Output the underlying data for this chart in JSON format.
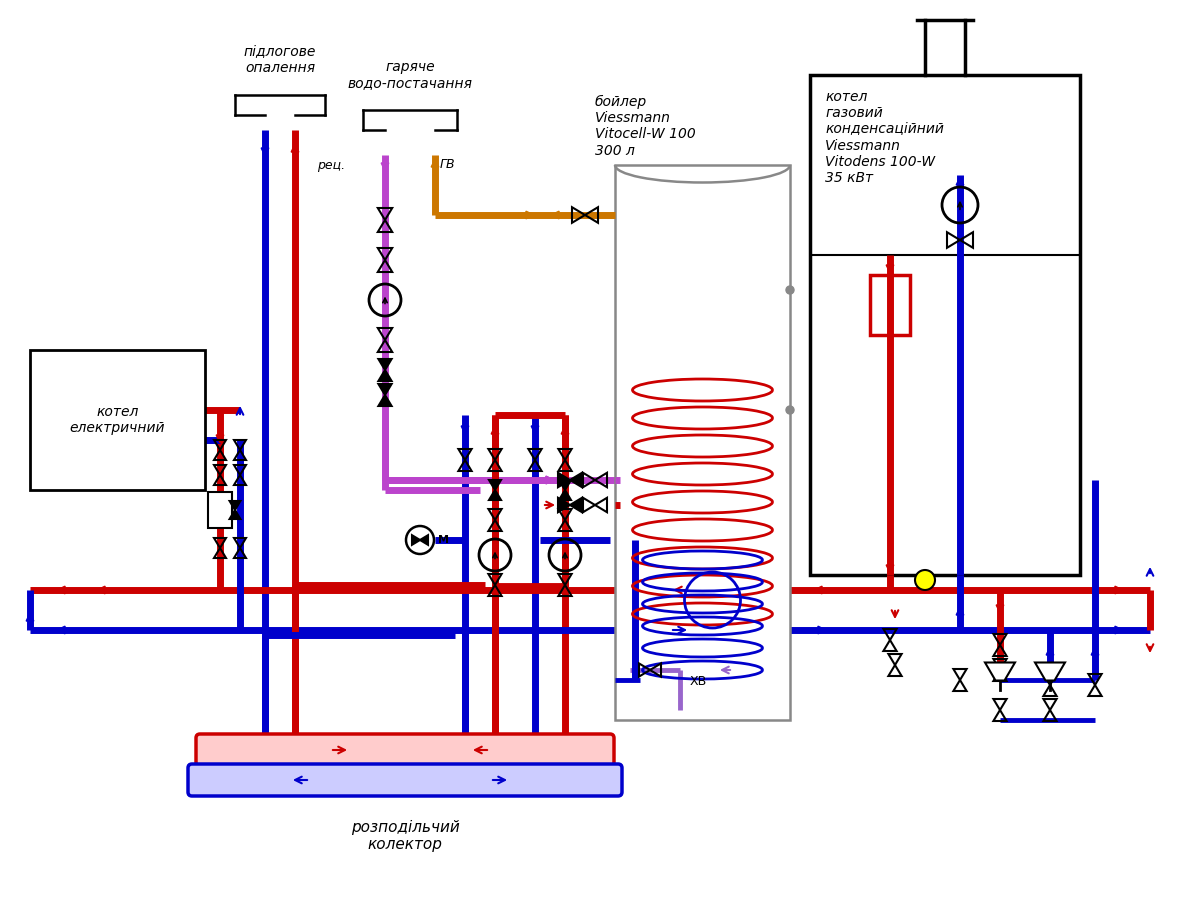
{
  "bg_color": "#ffffff",
  "red": "#cc0000",
  "blue": "#0000cc",
  "orange": "#cc7700",
  "purple": "#bb44cc",
  "light_purple": "#cc88cc",
  "label_pidlogove": "підлогове\nопалення",
  "label_garyache": "гаряче\nводо-постачання",
  "label_boiler": "бойлер\nViessmann\nVitocell-W 100\n300 л",
  "label_kotel_gaz": "котел\nгазовий\nконденсаційний\nViessmann\nVitodens 100-W\n35 кВт",
  "label_kotel_el": "котел\nелектричний",
  "label_rozpod": "розподільчий\nколектор",
  "label_rec": "рец.",
  "label_gv": "ГВ",
  "label_xv": "ХВ"
}
